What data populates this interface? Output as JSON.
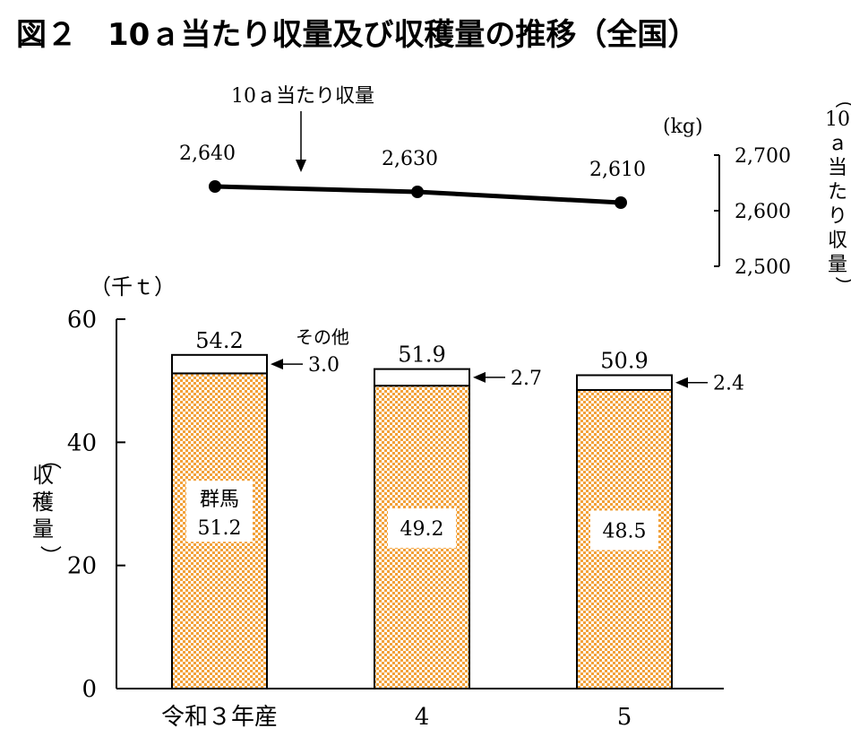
{
  "title": "図２　10ａ当たり収量及び収穫量の推移（全国）",
  "chart_data": [
    {
      "type": "line",
      "series": [
        {
          "name": "10ａ当たり収量",
          "values": [
            2640,
            2630,
            2610
          ]
        }
      ],
      "categories": [
        "令和３年産",
        "4",
        "5"
      ],
      "data_labels": [
        "2,640",
        "2,630",
        "2,610"
      ],
      "unit": "(kg)",
      "ylabel": "（10ａ当たり収量）",
      "ylabel_chars": [
        "10",
        "ａ",
        "当",
        "た",
        "り",
        "収",
        "量"
      ],
      "ylim": [
        2500,
        2700
      ],
      "yticks": [
        {
          "value": 2700,
          "label": "2,700"
        },
        {
          "value": 2600,
          "label": "2,600"
        },
        {
          "value": 2500,
          "label": "2,500"
        }
      ],
      "annotation": "10ａ当たり収量"
    },
    {
      "type": "bar",
      "stacked": true,
      "categories": [
        "令和３年産",
        "4",
        "5"
      ],
      "series": [
        {
          "name": "群馬",
          "values": [
            51.2,
            49.2,
            48.5
          ],
          "labels": [
            "51.2",
            "49.2",
            "48.5"
          ],
          "color": "#f5a623"
        },
        {
          "name": "その他",
          "values": [
            3.0,
            2.7,
            2.4
          ],
          "labels": [
            "3.0",
            "2.7",
            "2.4"
          ],
          "color": "#ffffff"
        }
      ],
      "totals": [
        54.2,
        51.9,
        50.9
      ],
      "total_labels": [
        "54.2",
        "51.9",
        "50.9"
      ],
      "unit": "（千ｔ）",
      "ylabel": "（収穫量）",
      "ylabel_chars": [
        "収",
        "穫",
        "量"
      ],
      "ylim": [
        0,
        60
      ],
      "yticks": [
        0,
        20,
        40,
        60
      ],
      "legend_text": "群馬"
    }
  ]
}
